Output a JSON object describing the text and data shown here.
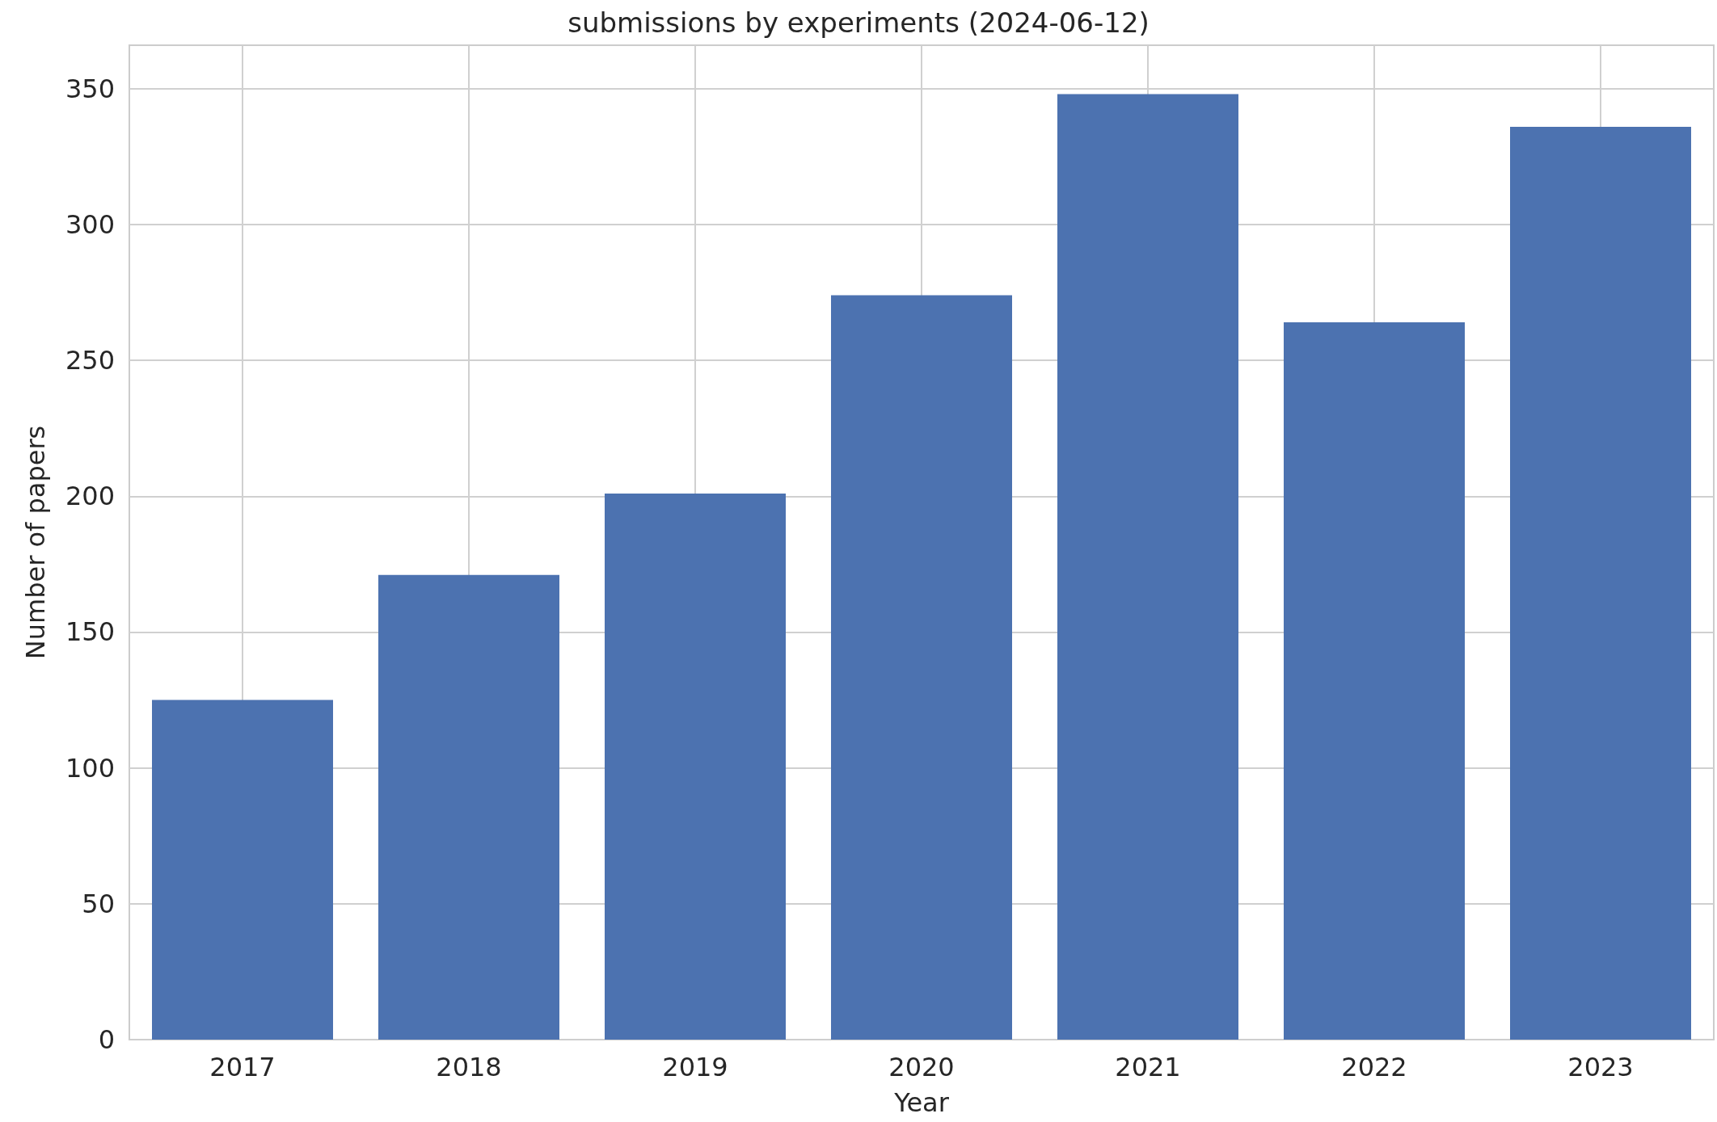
{
  "chart_data": {
    "type": "bar",
    "title": "submissions by experiments (2024-06-12)",
    "xlabel": "Year",
    "ylabel": "Number of papers",
    "categories": [
      "2017",
      "2018",
      "2019",
      "2020",
      "2021",
      "2022",
      "2023"
    ],
    "values": [
      125,
      171,
      201,
      274,
      348,
      264,
      336
    ],
    "color": "#4c72b0",
    "ylim": [
      0,
      366
    ],
    "yticks": [
      0,
      50,
      100,
      150,
      200,
      250,
      300,
      350
    ],
    "grid": true
  }
}
